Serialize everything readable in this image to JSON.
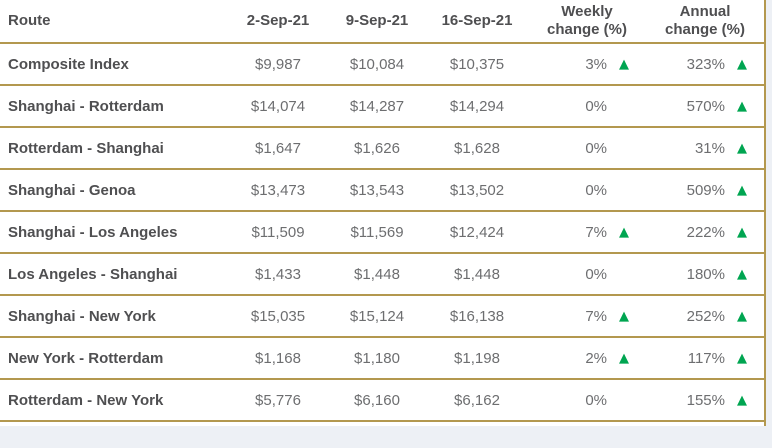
{
  "colors": {
    "border_gold": "#b3984f",
    "arrow_green": "#00a551",
    "page_bg": "#edf0f5",
    "text_dark": "#4f4f51",
    "text_value": "#6d6e70"
  },
  "icons": {
    "up_arrow": "▲"
  },
  "table": {
    "headers": {
      "route": "Route",
      "col1": "2-Sep-21",
      "col2": "9-Sep-21",
      "col3": "16-Sep-21",
      "weekly": "Weekly\nchange (%)",
      "annual": "Annual\nchange (%)"
    },
    "rows": [
      {
        "route": "Composite Index",
        "prices": [
          "$9,987",
          "$10,084",
          "$10,375"
        ],
        "weekly": "3%",
        "weekly_arrow": "▲",
        "annual": "323%",
        "annual_arrow": "▲"
      },
      {
        "route": "Shanghai - Rotterdam",
        "prices": [
          "$14,074",
          "$14,287",
          "$14,294"
        ],
        "weekly": "0%",
        "weekly_arrow": "",
        "annual": "570%",
        "annual_arrow": "▲"
      },
      {
        "route": "Rotterdam - Shanghai",
        "prices": [
          "$1,647",
          "$1,626",
          "$1,628"
        ],
        "weekly": "0%",
        "weekly_arrow": "",
        "annual": "31%",
        "annual_arrow": "▲"
      },
      {
        "route": "Shanghai - Genoa",
        "prices": [
          "$13,473",
          "$13,543",
          "$13,502"
        ],
        "weekly": "0%",
        "weekly_arrow": "",
        "annual": "509%",
        "annual_arrow": "▲"
      },
      {
        "route": "Shanghai - Los Angeles",
        "prices": [
          "$11,509",
          "$11,569",
          "$12,424"
        ],
        "weekly": "7%",
        "weekly_arrow": "▲",
        "annual": "222%",
        "annual_arrow": "▲"
      },
      {
        "route": "Los Angeles - Shanghai",
        "prices": [
          "$1,433",
          "$1,448",
          "$1,448"
        ],
        "weekly": "0%",
        "weekly_arrow": "",
        "annual": "180%",
        "annual_arrow": "▲"
      },
      {
        "route": "Shanghai - New York",
        "prices": [
          "$15,035",
          "$15,124",
          "$16,138"
        ],
        "weekly": "7%",
        "weekly_arrow": "▲",
        "annual": "252%",
        "annual_arrow": "▲"
      },
      {
        "route": "New York - Rotterdam",
        "prices": [
          "$1,168",
          "$1,180",
          "$1,198"
        ],
        "weekly": "2%",
        "weekly_arrow": "▲",
        "annual": "117%",
        "annual_arrow": "▲"
      },
      {
        "route": "Rotterdam - New York",
        "prices": [
          "$5,776",
          "$6,160",
          "$6,162"
        ],
        "weekly": "0%",
        "weekly_arrow": "",
        "annual": "155%",
        "annual_arrow": "▲"
      }
    ]
  }
}
